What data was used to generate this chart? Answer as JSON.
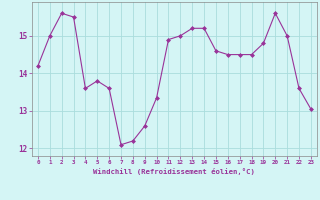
{
  "x": [
    0,
    1,
    2,
    3,
    4,
    5,
    6,
    7,
    8,
    9,
    10,
    11,
    12,
    13,
    14,
    15,
    16,
    17,
    18,
    19,
    20,
    21,
    22,
    23
  ],
  "y": [
    14.2,
    15.0,
    15.6,
    15.5,
    13.6,
    13.8,
    13.6,
    12.1,
    12.2,
    12.6,
    13.35,
    14.9,
    15.0,
    15.2,
    15.2,
    14.6,
    14.5,
    14.5,
    14.5,
    14.8,
    15.6,
    15.0,
    13.6,
    13.05
  ],
  "line_color": "#993399",
  "marker": "D",
  "marker_size": 2.0,
  "bg_color": "#d4f5f5",
  "grid_color": "#aadddd",
  "xlabel": "Windchill (Refroidissement éolien,°C)",
  "xlim": [
    -0.5,
    23.5
  ],
  "ylim": [
    11.8,
    15.9
  ],
  "yticks": [
    12,
    13,
    14,
    15
  ],
  "xticks": [
    0,
    1,
    2,
    3,
    4,
    5,
    6,
    7,
    8,
    9,
    10,
    11,
    12,
    13,
    14,
    15,
    16,
    17,
    18,
    19,
    20,
    21,
    22,
    23
  ]
}
